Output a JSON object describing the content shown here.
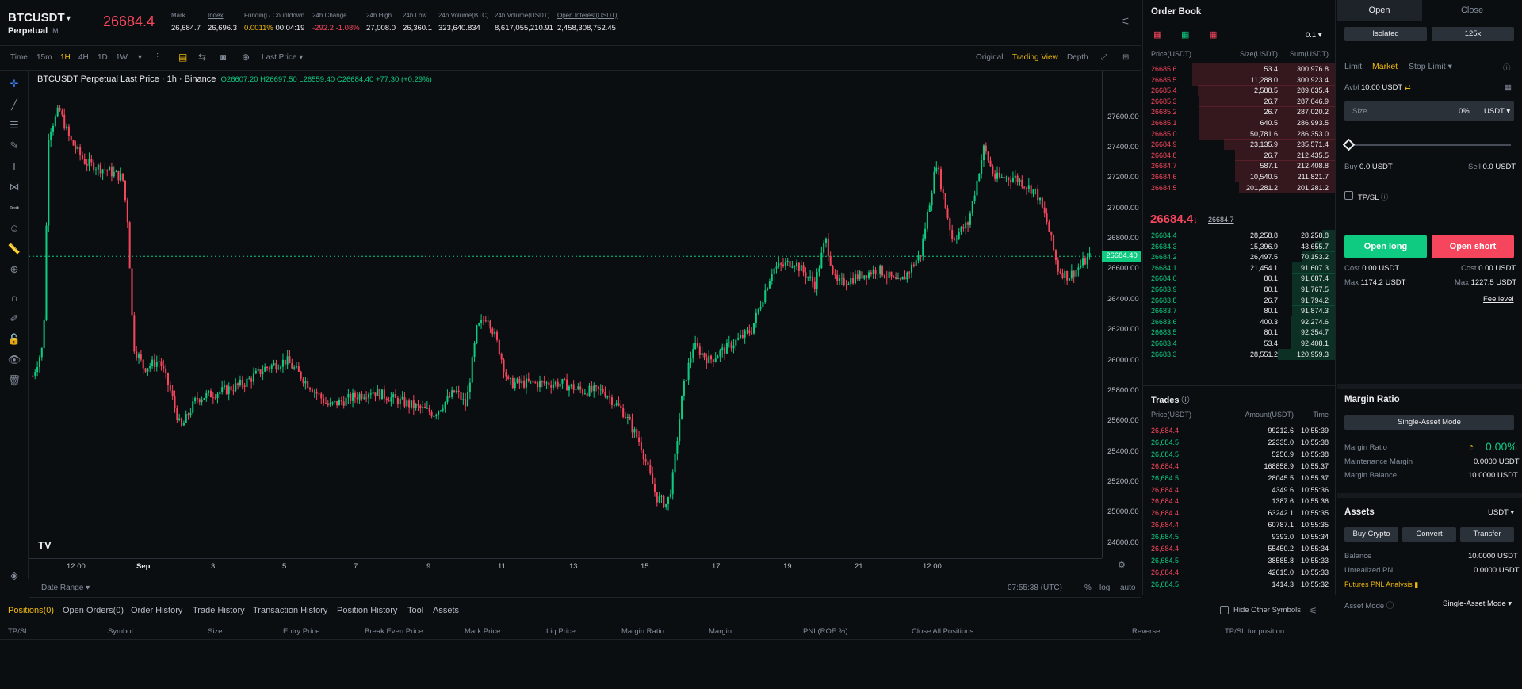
{
  "header": {
    "symbol": "BTCUSDT",
    "type": "Perpetual",
    "margin_badge": "M",
    "last_price": "26684.4",
    "stats": [
      {
        "label": "Mark",
        "value": "26,684.7"
      },
      {
        "label": "Index",
        "value": "26,696.3"
      },
      {
        "label": "Funding / Countdown",
        "value": "0.0011%",
        "value2": "00:04:19"
      },
      {
        "label": "24h Change",
        "value": "-292.2 -1.08%"
      },
      {
        "label": "24h High",
        "value": "27,008.0"
      },
      {
        "label": "24h Low",
        "value": "26,360.1"
      },
      {
        "label": "24h Volume(BTC)",
        "value": "323,640.834"
      },
      {
        "label": "24h Volume(USDT)",
        "value": "8,617,055,210.91"
      },
      {
        "label": "Open Interest(USDT)",
        "value": "2,458,308,752.45"
      }
    ]
  },
  "chart_toolbar": {
    "intervals": [
      "Time",
      "15m",
      "1H",
      "4H",
      "1D",
      "1W"
    ],
    "active_interval": "1H",
    "price_type": "Last Price",
    "views": [
      "Original",
      "Trading View",
      "Depth"
    ],
    "active_view": "Trading View"
  },
  "chart_legend": {
    "title": "BTCUSDT Perpetual Last Price · 1h · Binance",
    "ohlc": "O26607.20 H26697.50 L26559.40 C26684.40 +77.30 (+0.29%)"
  },
  "chart_data": {
    "type": "candlestick",
    "title": "BTCUSDT Perpetual Last Price · 1h · Binance",
    "y_ticks": [
      "27600.00",
      "27400.00",
      "27200.00",
      "27000.00",
      "26800.00",
      "26600.00",
      "26400.00",
      "26200.00",
      "26000.00",
      "25800.00",
      "25600.00",
      "25400.00",
      "25200.00",
      "25000.00",
      "24800.00"
    ],
    "ylim": [
      24700,
      27900
    ],
    "x_ticks": [
      "12:00",
      "Sep",
      "3",
      "5",
      "7",
      "9",
      "11",
      "13",
      "15",
      "17",
      "19",
      "21",
      "12:00"
    ],
    "current_price": "26684.40",
    "close_path": [
      {
        "x": 0,
        "y": 25900
      },
      {
        "x": 0.01,
        "y": 26100
      },
      {
        "x": 0.015,
        "y": 27500
      },
      {
        "x": 0.025,
        "y": 27650
      },
      {
        "x": 0.035,
        "y": 27450
      },
      {
        "x": 0.05,
        "y": 27300
      },
      {
        "x": 0.07,
        "y": 27250
      },
      {
        "x": 0.085,
        "y": 27200
      },
      {
        "x": 0.09,
        "y": 26900
      },
      {
        "x": 0.095,
        "y": 26100
      },
      {
        "x": 0.105,
        "y": 25950
      },
      {
        "x": 0.12,
        "y": 26000
      },
      {
        "x": 0.13,
        "y": 25800
      },
      {
        "x": 0.14,
        "y": 25550
      },
      {
        "x": 0.155,
        "y": 25750
      },
      {
        "x": 0.18,
        "y": 25800
      },
      {
        "x": 0.2,
        "y": 25850
      },
      {
        "x": 0.22,
        "y": 25950
      },
      {
        "x": 0.24,
        "y": 26000
      },
      {
        "x": 0.26,
        "y": 25850
      },
      {
        "x": 0.28,
        "y": 25700
      },
      {
        "x": 0.3,
        "y": 25750
      },
      {
        "x": 0.32,
        "y": 25800
      },
      {
        "x": 0.34,
        "y": 25750
      },
      {
        "x": 0.36,
        "y": 25700
      },
      {
        "x": 0.38,
        "y": 25650
      },
      {
        "x": 0.4,
        "y": 25800
      },
      {
        "x": 0.41,
        "y": 25700
      },
      {
        "x": 0.42,
        "y": 26200
      },
      {
        "x": 0.43,
        "y": 26300
      },
      {
        "x": 0.44,
        "y": 26100
      },
      {
        "x": 0.45,
        "y": 25850
      },
      {
        "x": 0.47,
        "y": 25850
      },
      {
        "x": 0.5,
        "y": 25850
      },
      {
        "x": 0.52,
        "y": 25800
      },
      {
        "x": 0.54,
        "y": 25800
      },
      {
        "x": 0.56,
        "y": 25650
      },
      {
        "x": 0.575,
        "y": 25450
      },
      {
        "x": 0.59,
        "y": 25100
      },
      {
        "x": 0.6,
        "y": 25050
      },
      {
        "x": 0.605,
        "y": 25200
      },
      {
        "x": 0.615,
        "y": 25800
      },
      {
        "x": 0.625,
        "y": 26100
      },
      {
        "x": 0.64,
        "y": 26000
      },
      {
        "x": 0.66,
        "y": 26100
      },
      {
        "x": 0.68,
        "y": 26200
      },
      {
        "x": 0.7,
        "y": 26600
      },
      {
        "x": 0.72,
        "y": 26650
      },
      {
        "x": 0.74,
        "y": 26500
      },
      {
        "x": 0.75,
        "y": 26800
      },
      {
        "x": 0.76,
        "y": 26500
      },
      {
        "x": 0.78,
        "y": 26550
      },
      {
        "x": 0.8,
        "y": 26600
      },
      {
        "x": 0.82,
        "y": 26500
      },
      {
        "x": 0.84,
        "y": 26700
      },
      {
        "x": 0.855,
        "y": 27300
      },
      {
        "x": 0.87,
        "y": 26800
      },
      {
        "x": 0.885,
        "y": 26900
      },
      {
        "x": 0.9,
        "y": 27400
      },
      {
        "x": 0.91,
        "y": 27200
      },
      {
        "x": 0.93,
        "y": 27200
      },
      {
        "x": 0.95,
        "y": 27100
      },
      {
        "x": 0.96,
        "y": 26900
      },
      {
        "x": 0.97,
        "y": 26600
      },
      {
        "x": 0.98,
        "y": 26550
      },
      {
        "x": 1.0,
        "y": 26680
      }
    ]
  },
  "chart_footer": {
    "date_range": "Date Range",
    "time": "07:55:38 (UTC)",
    "opts": [
      "%",
      "log",
      "auto"
    ]
  },
  "bottom_tabs": [
    "Positions(0)",
    "Open Orders(0)",
    "Order History",
    "Trade History",
    "Transaction History",
    "Position History",
    "Tool",
    "Assets"
  ],
  "position_columns": [
    "TP/SL",
    "Symbol",
    "Size",
    "Entry Price",
    "Break Even Price",
    "Mark Price",
    "Liq.Price",
    "Margin Ratio",
    "Margin",
    "PNL(ROE %)",
    "Close All Positions",
    "Reverse",
    "TP/SL for position"
  ],
  "orderbook": {
    "title": "Order Book",
    "tick": "0.1",
    "headers": [
      "Price(USDT)",
      "Size(USDT)",
      "Sum(USDT)"
    ],
    "asks": [
      [
        "26685.6",
        "53.4",
        "300,976.8",
        1.0
      ],
      [
        "26685.5",
        "11,288.0",
        "300,923.4",
        1.0
      ],
      [
        "26685.4",
        "2,588.5",
        "289,635.4",
        0.96
      ],
      [
        "26685.3",
        "26.7",
        "287,046.9",
        0.95
      ],
      [
        "26685.2",
        "26.7",
        "287,020.2",
        0.95
      ],
      [
        "26685.1",
        "640.5",
        "286,993.5",
        0.95
      ],
      [
        "26685.0",
        "50,781.6",
        "286,353.0",
        0.95
      ],
      [
        "26684.9",
        "23,135.9",
        "235,571.4",
        0.78
      ],
      [
        "26684.8",
        "26.7",
        "212,435.5",
        0.7
      ],
      [
        "26684.7",
        "587.1",
        "212,408.8",
        0.7
      ],
      [
        "26684.6",
        "10,540.5",
        "211,821.7",
        0.7
      ],
      [
        "26684.5",
        "201,281.2",
        "201,281.2",
        0.67
      ]
    ],
    "mid_price": "26684.4",
    "mid_arrow": "↓",
    "mark": "26684.7",
    "bids": [
      [
        "26684.4",
        "28,258.8",
        "28,258.8",
        0.09
      ],
      [
        "26684.3",
        "15,396.9",
        "43,655.7",
        0.14
      ],
      [
        "26684.2",
        "26,497.5",
        "70,153.2",
        0.23
      ],
      [
        "26684.1",
        "21,454.1",
        "91,607.3",
        0.3
      ],
      [
        "26684.0",
        "80.1",
        "91,687.4",
        0.3
      ],
      [
        "26683.9",
        "80.1",
        "91,767.5",
        0.3
      ],
      [
        "26683.8",
        "26.7",
        "91,794.2",
        0.3
      ],
      [
        "26683.7",
        "80.1",
        "91,874.3",
        0.3
      ],
      [
        "26683.6",
        "400.3",
        "92,274.6",
        0.31
      ],
      [
        "26683.5",
        "80.1",
        "92,354.7",
        0.31
      ],
      [
        "26683.4",
        "53.4",
        "92,408.1",
        0.31
      ],
      [
        "26683.3",
        "28,551.2",
        "120,959.3",
        0.4
      ]
    ]
  },
  "trades": {
    "title": "Trades",
    "headers": [
      "Price(USDT)",
      "Amount(USDT)",
      "Time"
    ],
    "rows": [
      [
        "26,684.4",
        "99212.6",
        "10:55:39",
        "sell"
      ],
      [
        "26,684.5",
        "22335.0",
        "10:55:38",
        "buy"
      ],
      [
        "26,684.5",
        "5256.9",
        "10:55:38",
        "buy"
      ],
      [
        "26,684.4",
        "168858.9",
        "10:55:37",
        "sell"
      ],
      [
        "26,684.5",
        "28045.5",
        "10:55:37",
        "buy"
      ],
      [
        "26,684.4",
        "4349.6",
        "10:55:36",
        "sell"
      ],
      [
        "26,684.4",
        "1387.6",
        "10:55:36",
        "sell"
      ],
      [
        "26,684.4",
        "63242.1",
        "10:55:35",
        "sell"
      ],
      [
        "26,684.4",
        "60787.1",
        "10:55:35",
        "sell"
      ],
      [
        "26,684.5",
        "9393.0",
        "10:55:34",
        "buy"
      ],
      [
        "26,684.4",
        "55450.2",
        "10:55:34",
        "sell"
      ],
      [
        "26,684.5",
        "38585.8",
        "10:55:33",
        "buy"
      ],
      [
        "26,684.4",
        "42615.0",
        "10:55:33",
        "sell"
      ],
      [
        "26,684.5",
        "1414.3",
        "10:55:32",
        "buy"
      ]
    ]
  },
  "trade_panel": {
    "tab_open": "Open",
    "tab_close": "Close",
    "margin_mode": "Isolated",
    "leverage": "125x",
    "order_types": [
      "Limit",
      "Market",
      "Stop Limit"
    ],
    "active_order_type": "Market",
    "avbl_label": "Avbl",
    "avbl": "10.00 USDT",
    "size_placeholder": "Size",
    "size_pct": "0%",
    "size_unit": "USDT",
    "buy_label": "Buy",
    "buy_val": "0.0 USDT",
    "sell_label": "Sell",
    "sell_val": "0.0 USDT",
    "tpsl": "TP/SL",
    "open_long": "Open long",
    "open_short": "Open short",
    "cost_label": "Cost",
    "cost_long": "0.00 USDT",
    "cost_short": "0.00 USDT",
    "max_label": "Max",
    "max_long": "1174.2 USDT",
    "max_short": "1227.5 USDT",
    "fee_level": "Fee level"
  },
  "margin_ratio": {
    "title": "Margin Ratio",
    "mode_btn": "Single-Asset Mode",
    "ratio_label": "Margin Ratio",
    "ratio_val": "0.00%",
    "maint_label": "Maintenance Margin",
    "maint_val": "0.0000 USDT",
    "bal_label": "Margin Balance",
    "bal_val": "10.0000 USDT"
  },
  "assets": {
    "title": "Assets",
    "currency": "USDT",
    "buttons": [
      "Buy Crypto",
      "Convert",
      "Transfer"
    ],
    "balance_label": "Balance",
    "balance": "10.0000 USDT",
    "upnl_label": "Unrealized PNL",
    "upnl": "0.0000 USDT",
    "futures_pnl": "Futures PNL Analysis",
    "asset_mode_label": "Asset Mode",
    "asset_mode": "Single-Asset Mode"
  },
  "colors": {
    "up": "#0ecb81",
    "down": "#f6465d",
    "accent": "#f0b90b",
    "bg": "#0b0e11"
  },
  "hide_other": "Hide Other Symbols"
}
